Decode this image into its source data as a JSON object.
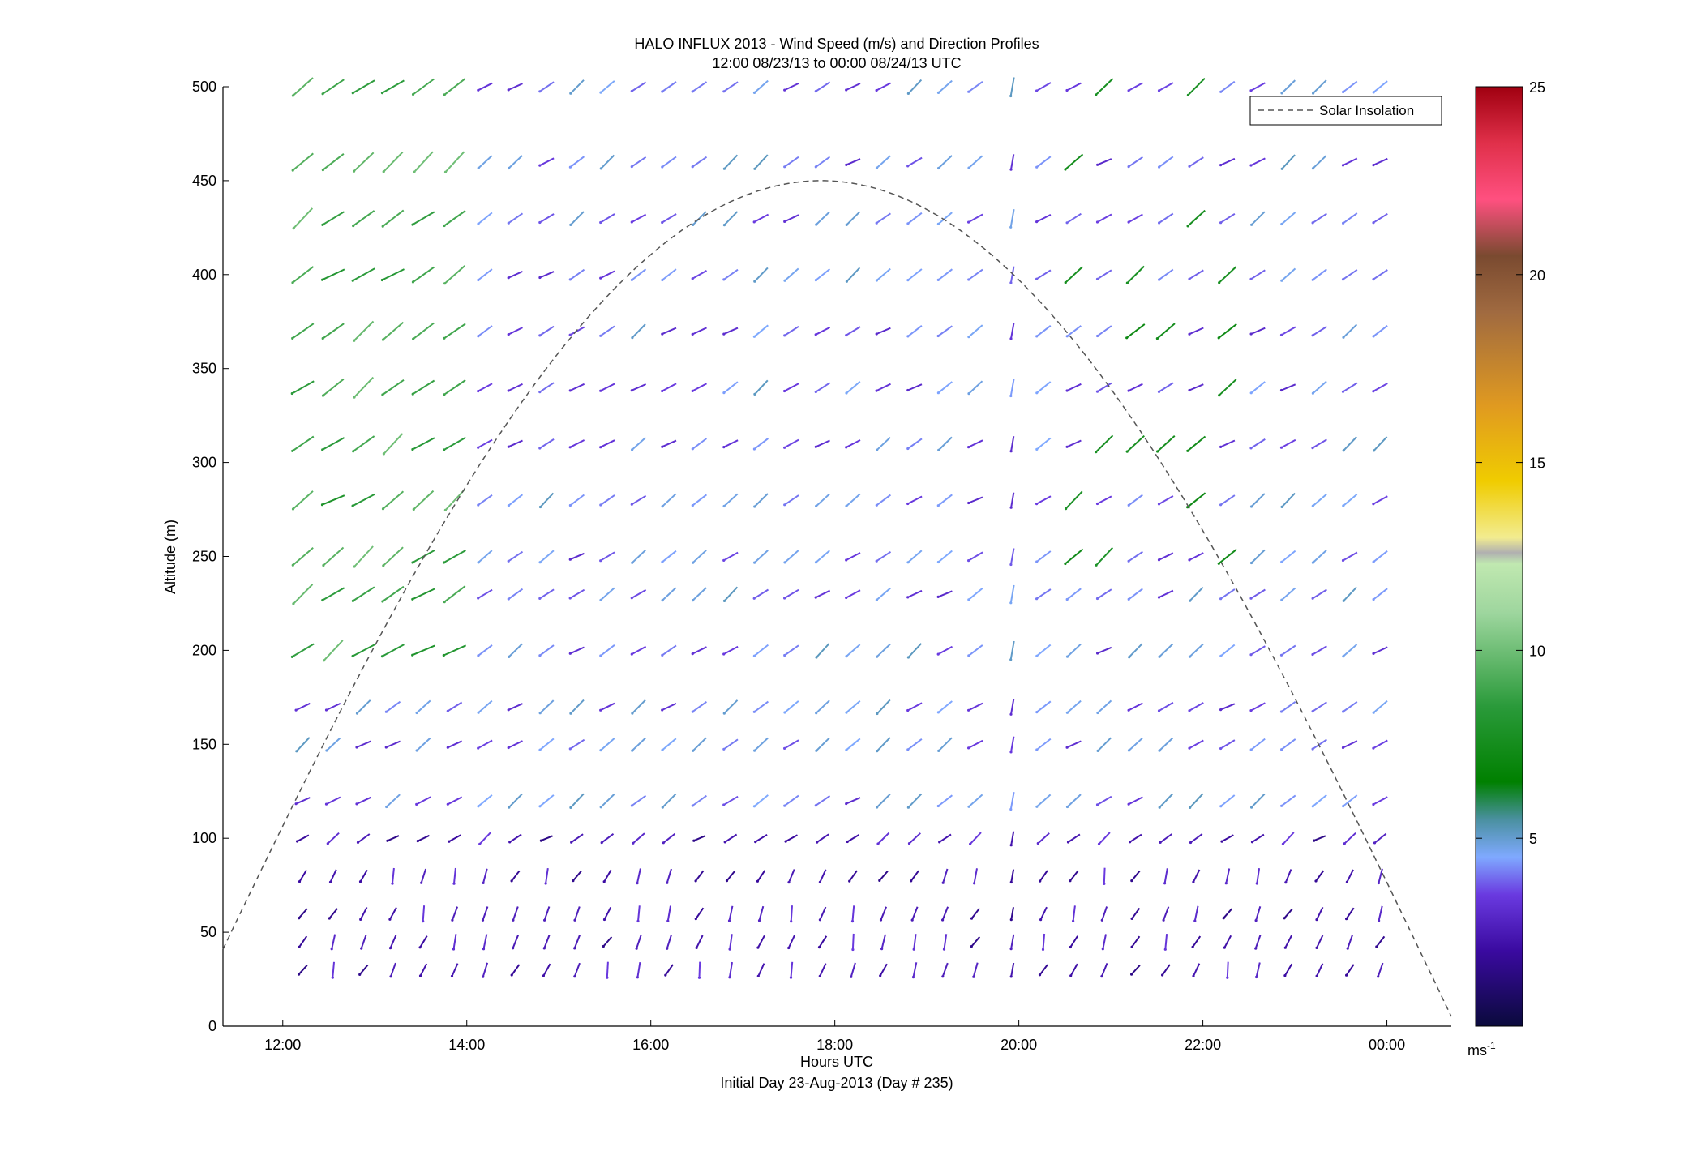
{
  "chart_data": {
    "type": "wind_barb_profile",
    "title": "HALO INFLUX 2013 - Wind Speed (m/s) and Direction Profiles",
    "subtitle": "12:00 08/23/13 to 00:00 08/24/13  UTC",
    "xlabel": "Hours UTC",
    "xlabel2": "Initial Day 23-Aug-2013 (Day # 235)",
    "ylabel": "Altitude (m)",
    "xlim_hours": [
      11.35,
      24.7
    ],
    "ylim": [
      0,
      500
    ],
    "x_tick_labels": [
      "12:00",
      "14:00",
      "16:00",
      "18:00",
      "20:00",
      "22:00",
      "00:00"
    ],
    "x_tick_hours": [
      12,
      14,
      16,
      18,
      20,
      22,
      24
    ],
    "y_ticks": [
      0,
      50,
      100,
      150,
      200,
      250,
      300,
      350,
      400,
      450,
      500
    ],
    "legend": {
      "entries": [
        "Solar Insolation"
      ],
      "placement": "top-right"
    },
    "colorbar": {
      "range": [
        0,
        25
      ],
      "ticks": [
        5,
        10,
        15,
        20,
        25
      ],
      "unit_label": "ms",
      "unit_exponent": "-1",
      "colormap_stops": [
        {
          "v": 0.0,
          "c": "#0a0a3c"
        },
        {
          "v": 2.0,
          "c": "#3a0aa0"
        },
        {
          "v": 3.5,
          "c": "#6a3ae0"
        },
        {
          "v": 4.5,
          "c": "#7fa9ff"
        },
        {
          "v": 5.5,
          "c": "#4a90a0"
        },
        {
          "v": 6.5,
          "c": "#008000"
        },
        {
          "v": 8.5,
          "c": "#2a9a3a"
        },
        {
          "v": 11.0,
          "c": "#9ed69e"
        },
        {
          "v": 12.3,
          "c": "#c0e8b0"
        },
        {
          "v": 12.6,
          "c": "#b0b0b0"
        },
        {
          "v": 13.0,
          "c": "#f2ec90"
        },
        {
          "v": 14.5,
          "c": "#f0cc00"
        },
        {
          "v": 16.5,
          "c": "#e09a20"
        },
        {
          "v": 19.0,
          "c": "#a06a40"
        },
        {
          "v": 20.5,
          "c": "#7a4a30"
        },
        {
          "v": 22.0,
          "c": "#ff5080"
        },
        {
          "v": 23.5,
          "c": "#e0304a"
        },
        {
          "v": 25.0,
          "c": "#a00010"
        }
      ]
    },
    "solar_insolation": {
      "peak_hour": 17.85,
      "peak_altitude_equiv": 450,
      "style": "dashed",
      "color": "#555555"
    },
    "wind_profiles": {
      "times_hours": [
        12.22,
        12.55,
        12.88,
        13.2,
        13.53,
        13.87,
        14.2,
        14.53,
        14.87,
        15.2,
        15.53,
        15.87,
        16.2,
        16.53,
        16.87,
        17.2,
        17.53,
        17.87,
        18.2,
        18.53,
        18.87,
        19.2,
        19.53,
        19.93,
        20.27,
        20.6,
        20.93,
        21.27,
        21.6,
        21.93,
        22.27,
        22.6,
        22.93,
        23.27,
        23.6,
        23.93
      ],
      "altitudes_m": [
        30,
        45,
        60,
        80,
        100,
        120,
        150,
        170,
        200,
        230,
        250,
        280,
        310,
        340,
        370,
        400,
        430,
        460,
        500
      ],
      "note": "direction in degrees (meteorological, from), speed in m/s"
    }
  }
}
